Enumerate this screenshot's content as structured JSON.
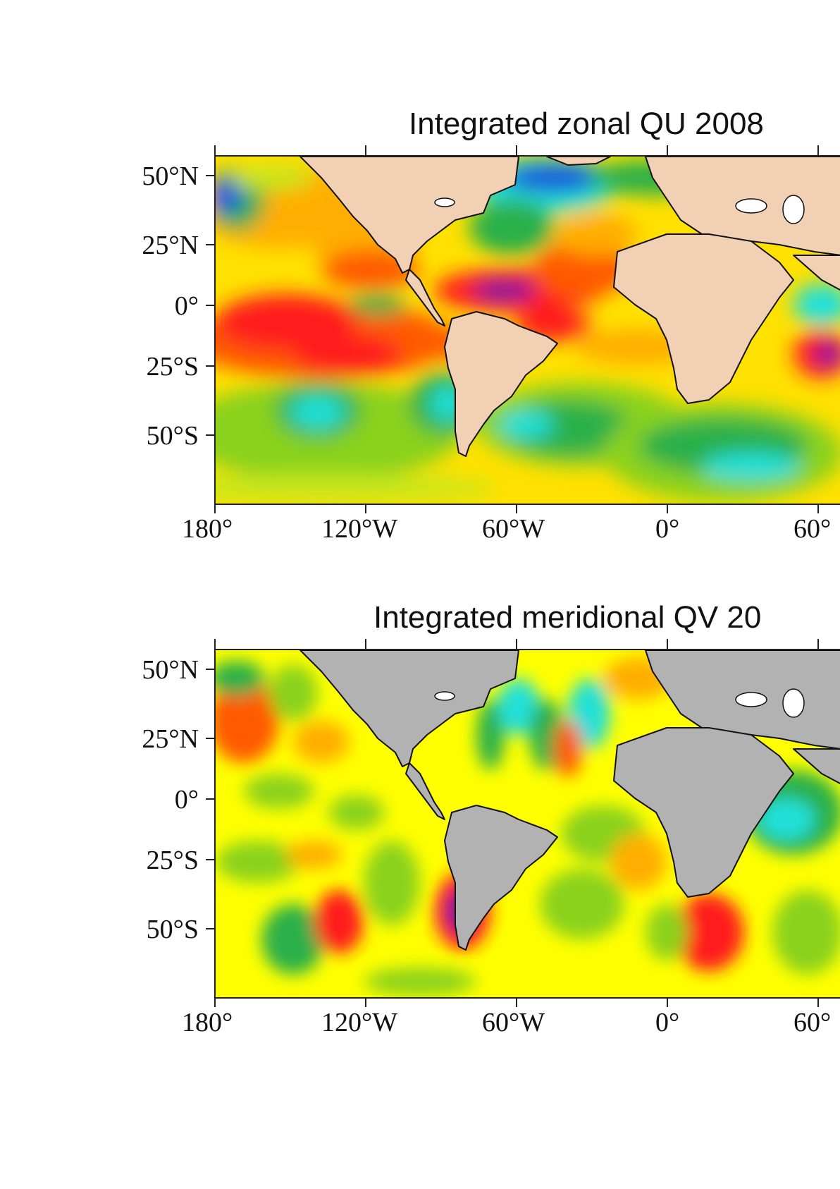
{
  "panels": [
    {
      "id": "zonal",
      "title": "Integrated zonal QU 2008",
      "land_color": "#f2d0b3",
      "lat_ticks": [
        "50°N",
        "25°N",
        "0°",
        "25°S",
        "50°S"
      ],
      "lon_ticks": [
        "180°",
        "120°W",
        "60°W",
        "0°",
        "60°"
      ]
    },
    {
      "id": "meridional",
      "title": "Integrated meridional QV 20",
      "land_color": "#b2b2b2",
      "lat_ticks": [
        "50°N",
        "25°N",
        "0°",
        "25°S",
        "50°S"
      ],
      "lon_ticks": [
        "180°",
        "120°W",
        "60°W",
        "0°",
        "60°"
      ]
    }
  ],
  "palette": {
    "yellow": "#ffff00",
    "light_yellow": "#f5f07a",
    "yellow_green": "#c8e61e",
    "green": "#8ad21e",
    "dark_green": "#2ab04a",
    "cyan": "#22e0d8",
    "blue": "#1d5ad8",
    "orange": "#ffae00",
    "red_orange": "#ff5a00",
    "red": "#ff1e1e",
    "purple": "#7a1e9c"
  }
}
